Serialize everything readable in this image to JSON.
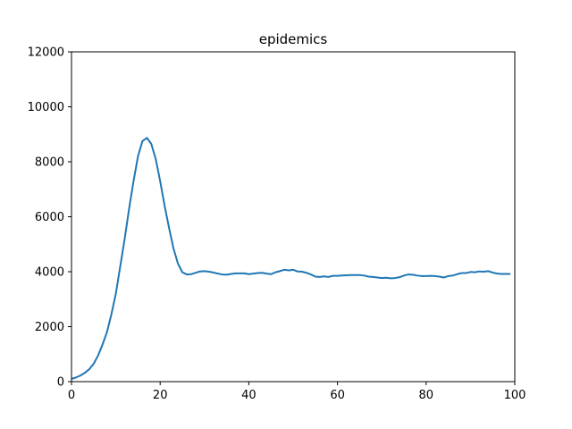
{
  "chart_data": {
    "type": "line",
    "title": "epidemics",
    "x": [
      0,
      1,
      2,
      3,
      4,
      5,
      6,
      7,
      8,
      9,
      10,
      11,
      12,
      13,
      14,
      15,
      16,
      17,
      18,
      19,
      20,
      21,
      22,
      23,
      24,
      25,
      26,
      27,
      28,
      29,
      30,
      31,
      32,
      33,
      34,
      35,
      36,
      37,
      38,
      39,
      40,
      41,
      42,
      43,
      44,
      45,
      46,
      47,
      48,
      49,
      50,
      51,
      52,
      53,
      54,
      55,
      56,
      57,
      58,
      59,
      60,
      61,
      62,
      63,
      64,
      65,
      66,
      67,
      68,
      69,
      70,
      71,
      72,
      73,
      74,
      75,
      76,
      77,
      78,
      79,
      80,
      81,
      82,
      83,
      84,
      85,
      86,
      87,
      88,
      89,
      90,
      91,
      92,
      93,
      94,
      95,
      96,
      97,
      98,
      99
    ],
    "series": [
      {
        "color": "#1f77b4",
        "values": [
          100,
          150,
          220,
          320,
          450,
          650,
          950,
          1350,
          1800,
          2450,
          3200,
          4200,
          5200,
          6300,
          7300,
          8200,
          8750,
          8870,
          8650,
          8100,
          7300,
          6400,
          5600,
          4850,
          4300,
          3980,
          3900,
          3910,
          3960,
          4010,
          4020,
          4000,
          3970,
          3930,
          3900,
          3890,
          3920,
          3940,
          3940,
          3940,
          3910,
          3930,
          3950,
          3960,
          3930,
          3910,
          3980,
          4020,
          4070,
          4050,
          4070,
          4010,
          4000,
          3960,
          3900,
          3820,
          3810,
          3830,
          3810,
          3850,
          3850,
          3860,
          3870,
          3880,
          3880,
          3880,
          3860,
          3820,
          3810,
          3790,
          3770,
          3780,
          3760,
          3770,
          3800,
          3860,
          3900,
          3890,
          3860,
          3840,
          3840,
          3850,
          3840,
          3820,
          3790,
          3840,
          3860,
          3910,
          3950,
          3950,
          3990,
          3980,
          4010,
          4000,
          4020,
          3970,
          3930,
          3920,
          3920,
          3920
        ]
      }
    ],
    "xlim": [
      0,
      100
    ],
    "xticks": [
      0,
      20,
      40,
      60,
      80,
      100
    ],
    "ylim": [
      0,
      12000
    ],
    "yticks": [
      0,
      2000,
      4000,
      6000,
      8000,
      10000,
      12000
    ]
  }
}
